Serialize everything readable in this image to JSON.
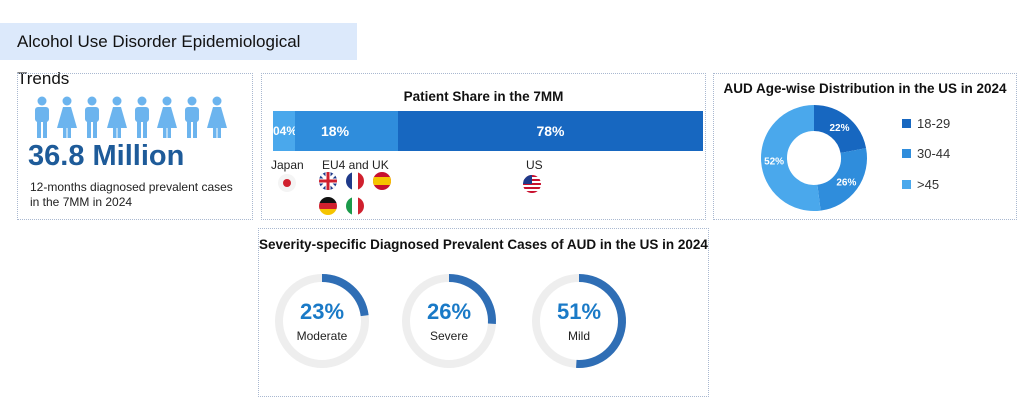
{
  "header": {
    "title": "Alcohol Use Disorder Epidemiological Trends"
  },
  "prevalence": {
    "value": "36.8 Million",
    "caption_line1": "12-months diagnosed prevalent cases",
    "caption_line2": "in the 7MM in 2024",
    "icon_color": "#6cb4ee",
    "value_color": "#1e5b99"
  },
  "chart_data": [
    {
      "type": "bar",
      "title": "Patient Share in the 7MM",
      "orientation": "horizontal-stacked",
      "categories": [
        "Japan",
        "EU4 and UK",
        "US"
      ],
      "values": [
        4,
        18,
        78
      ],
      "data_labels": [
        "04%",
        "18%",
        "78%"
      ],
      "colors": [
        "#4aa8ec",
        "#2f8ddc",
        "#1767c0"
      ],
      "flags": {
        "Japan": [
          "japan-flag"
        ],
        "EU4 and UK": [
          "uk-flag",
          "france-flag",
          "spain-flag",
          "germany-flag",
          "italy-flag"
        ],
        "US": [
          "us-flag"
        ]
      }
    },
    {
      "type": "pie",
      "title": "AUD Age-wise Distribution in the US in 2024",
      "donut": true,
      "categories": [
        "18-29",
        "30-44",
        ">45"
      ],
      "values": [
        22,
        26,
        52
      ],
      "data_labels": [
        "22%",
        "26%",
        "52%"
      ],
      "colors": [
        "#1767c0",
        "#2f8ddc",
        "#4aa8ec"
      ],
      "legend": "right"
    },
    {
      "type": "pie",
      "title": "Severity-specific Diagnosed Prevalent Cases of AUD in the US in 2024",
      "style": "progress-rings",
      "categories": [
        "Moderate",
        "Severe",
        "Mild"
      ],
      "values": [
        23,
        26,
        51
      ],
      "data_labels": [
        "23%",
        "26%",
        "51%"
      ],
      "colors": [
        "#2f6eb5",
        "#eeeeee"
      ]
    }
  ]
}
